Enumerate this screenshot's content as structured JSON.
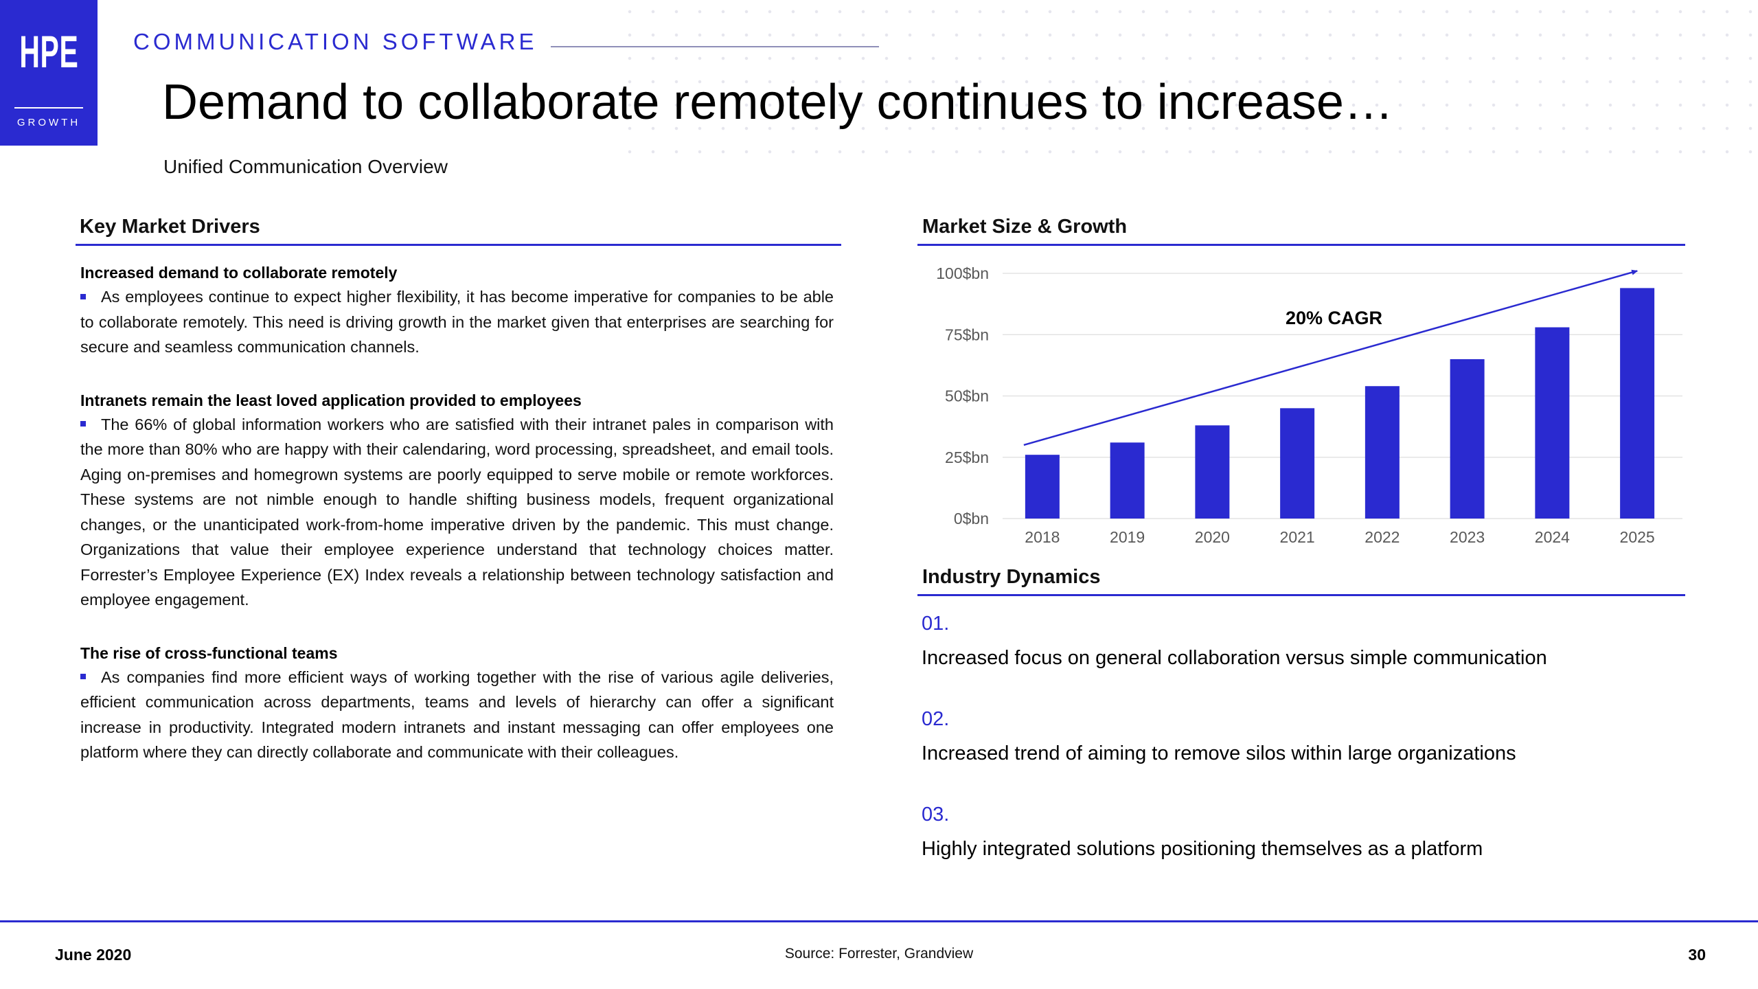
{
  "brand": {
    "logo_text": "HPE",
    "logo_subtext": "GROWTH",
    "accent_color": "#2a2ad0"
  },
  "header": {
    "kicker": "COMMUNICATION SOFTWARE",
    "title": "Demand to collaborate remotely continues to increase…",
    "subtitle": "Unified Communication Overview"
  },
  "key_market_drivers": {
    "heading": "Key Market Drivers",
    "items": [
      {
        "title": "Increased demand to collaborate remotely",
        "text": "As employees continue to expect higher flexibility, it has become imperative for companies to be able to collaborate remotely. This need is driving growth in the market given that enterprises are searching for secure and seamless communication channels."
      },
      {
        "title": "Intranets remain the least loved application provided to employees",
        "text": "The 66% of global information workers who are satisfied with their intranet pales in comparison with the more than 80% who are happy with their calendaring, word processing, spreadsheet, and email tools. Aging on-premises and homegrown systems are poorly equipped to serve mobile or remote workforces. These systems are not nimble enough to handle shifting business models, frequent organizational changes, or the unanticipated work-from-home imperative driven by the pandemic. This must change. Organizations that value their employee experience understand that technology choices matter. Forrester’s Employee Experience (EX) Index reveals a relationship between technology satisfaction and employee engagement."
      },
      {
        "title": "The rise of cross-functional teams",
        "text": "As companies find more efficient ways of working together with the rise of various agile deliveries, efficient communication across departments, teams and levels of hierarchy can offer a significant increase in productivity. Integrated modern intranets and instant messaging can offer employees one platform where they can directly collaborate and communicate with their colleagues."
      }
    ]
  },
  "market_size": {
    "heading": "Market Size & Growth"
  },
  "chart_data": {
    "type": "bar",
    "title": "",
    "xlabel": "",
    "ylabel": "",
    "categories": [
      "2018",
      "2019",
      "2020",
      "2021",
      "2022",
      "2023",
      "2024",
      "2025"
    ],
    "values": [
      26,
      31,
      38,
      45,
      54,
      65,
      78,
      94
    ],
    "ylim": [
      0,
      100
    ],
    "yticks": [
      0,
      25,
      50,
      75,
      100
    ],
    "ytick_labels": [
      "0$bn",
      "25$bn",
      "50$bn",
      "75$bn",
      "100$bn"
    ],
    "trend_label": "20% CAGR",
    "trend_line": {
      "from": {
        "x": "2018",
        "y": 30
      },
      "to": {
        "x": "2025",
        "y": 101
      }
    },
    "grid": true,
    "bar_color": "#2a2ad0"
  },
  "industry_dynamics": {
    "heading": "Industry Dynamics",
    "items": [
      {
        "num": "01.",
        "text": "Increased focus on general collaboration versus simple communication"
      },
      {
        "num": "02.",
        "text": "Increased trend of aiming to remove silos within large organizations"
      },
      {
        "num": "03.",
        "text": "Highly integrated solutions positioning themselves as a platform"
      }
    ]
  },
  "footer": {
    "date": "June 2020",
    "source": "Source: Forrester, Grandview",
    "page": "30"
  }
}
